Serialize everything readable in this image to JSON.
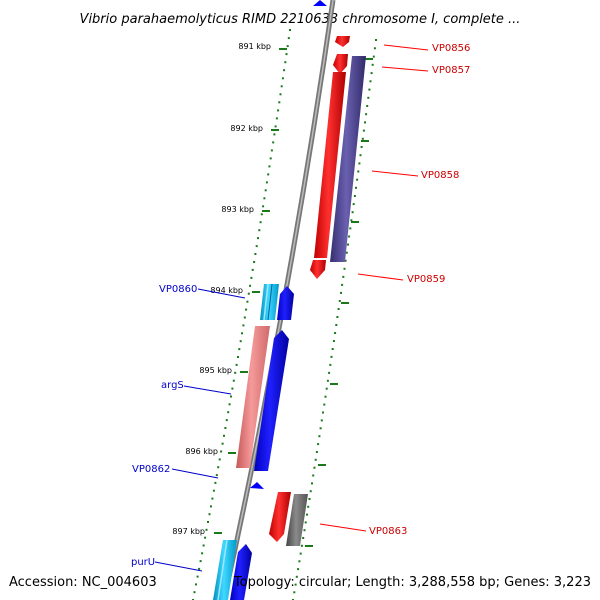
{
  "title": "Vibrio parahaemolyticus RIMD 2210633 chromosome I, complete ...",
  "accession_label": "Accession: NC_004603",
  "summary_label": "Topology: circular; Length: 3,288,558 bp; Genes: 3,223",
  "colors": {
    "backbone": "#888888",
    "tick": "#1a7a1a",
    "label_forward": "#0000cc",
    "label_reverse": "#cc0000",
    "gene_red": "#ff0000",
    "gene_blue": "#0000ff",
    "gene_navy": "#4a4090",
    "gene_pink": "#e87878",
    "gene_cyan": "#00b8e8",
    "gene_gray": "#666666"
  },
  "ticks": [
    {
      "label": "891 kbp"
    },
    {
      "label": "892 kbp"
    },
    {
      "label": "893 kbp"
    },
    {
      "label": "894 kbp"
    },
    {
      "label": "895 kbp"
    },
    {
      "label": "896 kbp"
    },
    {
      "label": "897 kbp"
    }
  ],
  "genes": [
    {
      "name": "VP0856",
      "strand": "reverse",
      "color": "gene_red"
    },
    {
      "name": "VP0857",
      "strand": "reverse",
      "color": "gene_red"
    },
    {
      "name": "VP0858",
      "strand": "reverse",
      "color": "gene_navy"
    },
    {
      "name": "VP0859",
      "strand": "reverse",
      "color": "gene_red"
    },
    {
      "name": "VP0860",
      "strand": "forward",
      "color": "gene_cyan"
    },
    {
      "name": "argS",
      "strand": "forward",
      "color": "gene_pink"
    },
    {
      "name": "VP0862",
      "strand": "forward",
      "color": "gene_blue"
    },
    {
      "name": "VP0863",
      "strand": "reverse",
      "color": "gene_red"
    },
    {
      "name": "purU",
      "strand": "forward",
      "color": "gene_cyan"
    }
  ]
}
